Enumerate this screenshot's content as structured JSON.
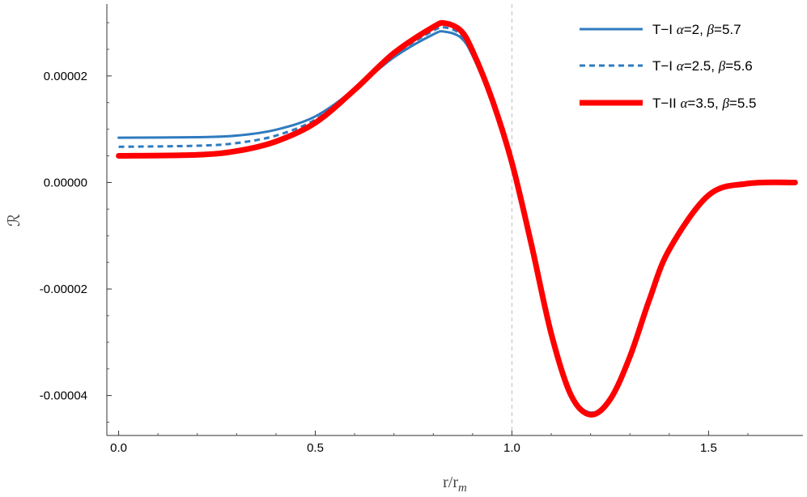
{
  "chart_data": {
    "type": "line",
    "xlabel_parts": [
      "r/r",
      "m"
    ],
    "ylabel": "ℛ",
    "xlim": [
      -0.03,
      1.74
    ],
    "ylim": [
      -4.75e-05,
      3.35e-05
    ],
    "x_ticks": [
      {
        "value": 0.0,
        "label": "0.0"
      },
      {
        "value": 0.5,
        "label": "0.5"
      },
      {
        "value": 1.0,
        "label": "1.0"
      },
      {
        "value": 1.5,
        "label": "1.5"
      }
    ],
    "y_ticks": [
      {
        "value": 2e-05,
        "label": "0.00002"
      },
      {
        "value": 0.0,
        "label": "0.00000"
      },
      {
        "value": -2e-05,
        "label": "-0.00002"
      },
      {
        "value": -4e-05,
        "label": "-0.00004"
      }
    ],
    "reference_line_x": 1.0,
    "legend_position": "top-right",
    "series": [
      {
        "name_parts": [
          [
            "T−I ",
            "n"
          ],
          [
            "α",
            "i"
          ],
          [
            "=2, ",
            "n"
          ],
          [
            "β",
            "i"
          ],
          [
            "=5.7",
            "n"
          ]
        ],
        "color": "#2f7bbf",
        "style": "solid",
        "x": [
          0.0,
          0.2,
          0.3,
          0.4,
          0.5,
          0.6,
          0.7,
          0.8,
          0.83,
          0.87,
          0.9,
          0.95,
          1.0,
          1.05,
          1.1,
          1.15,
          1.2,
          1.25,
          1.3,
          1.35,
          1.4,
          1.5,
          1.6,
          1.72
        ],
        "y": [
          8.4e-06,
          8.5e-06,
          8.8e-06,
          9.9e-06,
          1.24e-05,
          1.75e-05,
          2.35e-05,
          2.78e-05,
          2.83e-05,
          2.72e-05,
          2.38e-05,
          1.48e-05,
          3.3e-06,
          -1.18e-05,
          -2.82e-05,
          -3.95e-05,
          -4.32e-05,
          -4.05e-05,
          -3.25e-05,
          -2.18e-05,
          -1.25e-05,
          -2.3e-06,
          -2e-07,
          0.0
        ]
      },
      {
        "name_parts": [
          [
            "T−I ",
            "n"
          ],
          [
            "α",
            "i"
          ],
          [
            "=2.5, ",
            "n"
          ],
          [
            "β",
            "i"
          ],
          [
            "=5.6",
            "n"
          ]
        ],
        "color": "#2f7bbf",
        "style": "dashed",
        "x": [
          0.0,
          0.2,
          0.3,
          0.4,
          0.5,
          0.6,
          0.7,
          0.8,
          0.83,
          0.87,
          0.9,
          0.95,
          1.0,
          1.05,
          1.1,
          1.15,
          1.2,
          1.25,
          1.3,
          1.35,
          1.4,
          1.5,
          1.6,
          1.72
        ],
        "y": [
          6.7e-06,
          6.9e-06,
          7.4e-06,
          8.8e-06,
          1.18e-05,
          1.74e-05,
          2.39e-05,
          2.85e-05,
          2.91e-05,
          2.78e-05,
          2.42e-05,
          1.51e-05,
          3.5e-06,
          -1.18e-05,
          -2.83e-05,
          -3.97e-05,
          -4.34e-05,
          -4.06e-05,
          -3.26e-05,
          -2.18e-05,
          -1.25e-05,
          -2.3e-06,
          -2e-07,
          0.0
        ]
      },
      {
        "name_parts": [
          [
            "T−II ",
            "n"
          ],
          [
            "α",
            "i"
          ],
          [
            "=3.5, ",
            "n"
          ],
          [
            "β",
            "i"
          ],
          [
            "=5.5",
            "n"
          ]
        ],
        "color": "#ff0000",
        "style": "thick",
        "x": [
          0.0,
          0.2,
          0.3,
          0.4,
          0.5,
          0.6,
          0.7,
          0.8,
          0.83,
          0.87,
          0.9,
          0.95,
          1.0,
          1.05,
          1.1,
          1.15,
          1.2,
          1.25,
          1.3,
          1.35,
          1.4,
          1.5,
          1.6,
          1.72
        ],
        "y": [
          5e-06,
          5.2e-06,
          5.9e-06,
          7.7e-06,
          1.12e-05,
          1.74e-05,
          2.43e-05,
          2.92e-05,
          2.99e-05,
          2.85e-05,
          2.47e-05,
          1.55e-05,
          3.7e-06,
          -1.18e-05,
          -2.84e-05,
          -3.99e-05,
          -4.36e-05,
          -4.07e-05,
          -3.27e-05,
          -2.19e-05,
          -1.26e-05,
          -2.4e-06,
          -2e-07,
          0.0
        ]
      }
    ]
  }
}
